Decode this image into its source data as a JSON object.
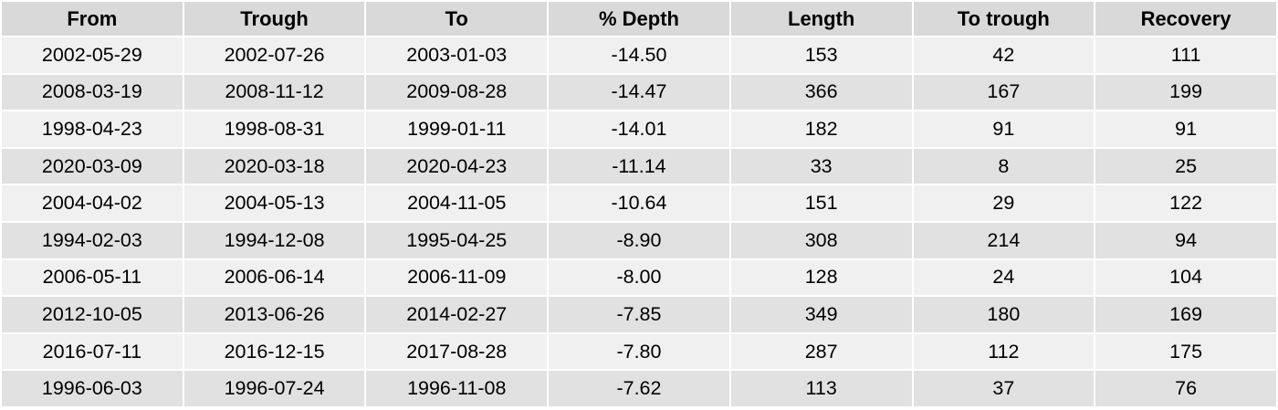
{
  "chart_data": {
    "type": "table",
    "columns": [
      "From",
      "Trough",
      "To",
      "% Depth",
      "Length",
      "To trough",
      "Recovery"
    ],
    "rows": [
      [
        "2002-05-29",
        "2002-07-26",
        "2003-01-03",
        "-14.50",
        "153",
        "42",
        "111"
      ],
      [
        "2008-03-19",
        "2008-11-12",
        "2009-08-28",
        "-14.47",
        "366",
        "167",
        "199"
      ],
      [
        "1998-04-23",
        "1998-08-31",
        "1999-01-11",
        "-14.01",
        "182",
        "91",
        "91"
      ],
      [
        "2020-03-09",
        "2020-03-18",
        "2020-04-23",
        "-11.14",
        "33",
        "8",
        "25"
      ],
      [
        "2004-04-02",
        "2004-05-13",
        "2004-11-05",
        "-10.64",
        "151",
        "29",
        "122"
      ],
      [
        "1994-02-03",
        "1994-12-08",
        "1995-04-25",
        "-8.90",
        "308",
        "214",
        "94"
      ],
      [
        "2006-05-11",
        "2006-06-14",
        "2006-11-09",
        "-8.00",
        "128",
        "24",
        "104"
      ],
      [
        "2012-10-05",
        "2013-06-26",
        "2014-02-27",
        "-7.85",
        "349",
        "180",
        "169"
      ],
      [
        "2016-07-11",
        "2016-12-15",
        "2017-08-28",
        "-7.80",
        "287",
        "112",
        "175"
      ],
      [
        "1996-06-03",
        "1996-07-24",
        "1996-11-08",
        "-7.62",
        "113",
        "37",
        "76"
      ]
    ]
  },
  "colors": {
    "header_bg": "#d9d9d9",
    "row_odd_bg": "#f0f0f0",
    "row_even_bg": "#e1e1e1",
    "text": "#000000"
  }
}
